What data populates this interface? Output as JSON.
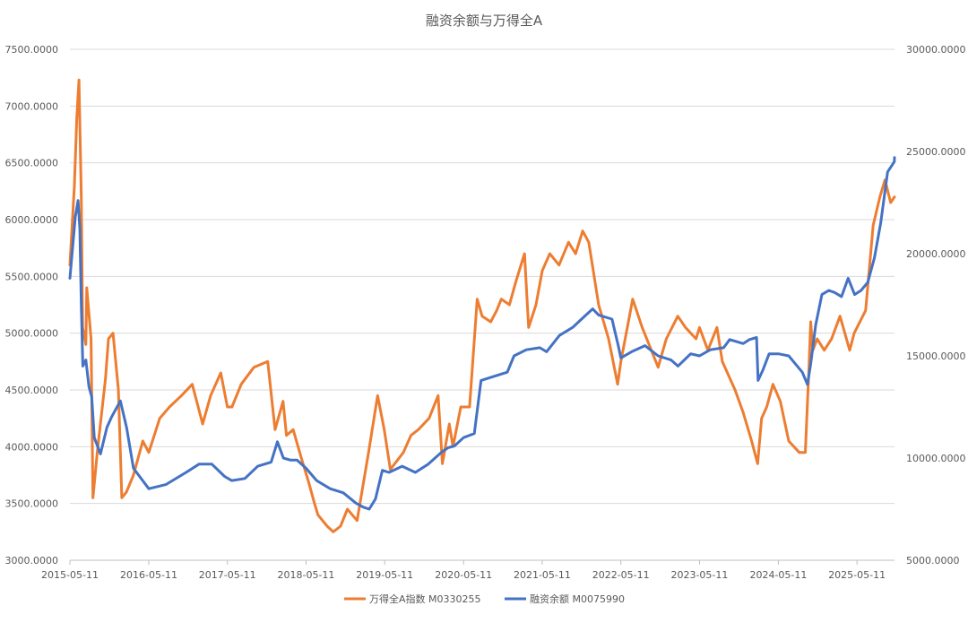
{
  "chart_data": {
    "type": "line",
    "title": "融资余额与万得全A",
    "xlabel": "",
    "ylabel": "",
    "y2label": "",
    "x_tick_labels": [
      "2015-05-11",
      "2016-05-11",
      "2017-05-11",
      "2018-05-11",
      "2019-05-11",
      "2020-05-11",
      "2021-05-11",
      "2022-05-11",
      "2023-05-11",
      "2024-05-11",
      "2025-05-11"
    ],
    "y_tick_labels": [
      "3000.0000",
      "3500.0000",
      "4000.0000",
      "4500.0000",
      "5000.0000",
      "5500.0000",
      "6000.0000",
      "6500.0000",
      "7000.0000",
      "7500.0000"
    ],
    "y2_tick_labels": [
      "5000.0000",
      "10000.0000",
      "15000.0000",
      "20000.0000",
      "25000.0000",
      "30000.0000"
    ],
    "ylim": [
      3000,
      7500
    ],
    "y2lim": [
      5000,
      30000
    ],
    "xlim": [
      "2015-05-11",
      "2025-11-01"
    ],
    "grid": true,
    "legend_position": "bottom",
    "series": [
      {
        "name": "万得全A指数 M0330255",
        "axis": "left",
        "color": "#ED7D31",
        "x": [
          "2015-05-11",
          "2015-06-01",
          "2015-06-12",
          "2015-06-22",
          "2015-07-03",
          "2015-07-09",
          "2015-07-24",
          "2015-07-28",
          "2015-08-17",
          "2015-08-26",
          "2015-09-15",
          "2015-10-23",
          "2015-11-06",
          "2015-11-27",
          "2015-12-22",
          "2016-01-07",
          "2016-01-28",
          "2016-03-01",
          "2016-04-13",
          "2016-05-11",
          "2016-07-01",
          "2016-08-15",
          "2016-10-10",
          "2016-11-29",
          "2017-01-16",
          "2017-02-22",
          "2017-04-10",
          "2017-05-11",
          "2017-06-01",
          "2017-07-14",
          "2017-09-11",
          "2017-11-14",
          "2017-12-18",
          "2018-01-24",
          "2018-02-09",
          "2018-03-12",
          "2018-04-19",
          "2018-05-21",
          "2018-06-19",
          "2018-07-05",
          "2018-08-17",
          "2018-09-14",
          "2018-10-18",
          "2018-11-19",
          "2019-01-03",
          "2019-02-25",
          "2019-04-08",
          "2019-05-09",
          "2019-06-06",
          "2019-08-06",
          "2019-09-10",
          "2019-10-14",
          "2019-12-03",
          "2020-01-14",
          "2020-02-03",
          "2020-03-06",
          "2020-03-23",
          "2020-04-28",
          "2020-06-08",
          "2020-07-13",
          "2020-08-05",
          "2020-09-14",
          "2020-10-12",
          "2020-11-02",
          "2020-12-10",
          "2021-01-08",
          "2021-02-18",
          "2021-03-09",
          "2021-04-12",
          "2021-05-11",
          "2021-06-15",
          "2021-07-28",
          "2021-09-10",
          "2021-10-13",
          "2021-11-15",
          "2021-12-13",
          "2022-01-28",
          "2022-03-15",
          "2022-04-26",
          "2022-05-11",
          "2022-07-05",
          "2022-08-18",
          "2022-10-31",
          "2022-12-08",
          "2023-01-30",
          "2023-03-07",
          "2023-04-25",
          "2023-05-11",
          "2023-06-19",
          "2023-07-31",
          "2023-08-25",
          "2023-10-23",
          "2023-11-30",
          "2024-01-08",
          "2024-02-05",
          "2024-02-23",
          "2024-03-18",
          "2024-04-16",
          "2024-05-20",
          "2024-06-28",
          "2024-08-16",
          "2024-09-13",
          "2024-09-30",
          "2024-10-08",
          "2024-10-18",
          "2024-11-07",
          "2024-12-10",
          "2025-01-13",
          "2025-02-21",
          "2025-04-07",
          "2025-04-28",
          "2025-05-11",
          "2025-06-20",
          "2025-07-25",
          "2025-08-25",
          "2025-09-18",
          "2025-10-14",
          "2025-11-01"
        ],
        "values": [
          5600,
          6300,
          6900,
          7230,
          6200,
          5050,
          4900,
          5400,
          4950,
          3550,
          3950,
          4600,
          4950,
          5000,
          4500,
          3550,
          3600,
          3750,
          4050,
          3950,
          4250,
          4350,
          4450,
          4550,
          4200,
          4450,
          4650,
          4350,
          4350,
          4550,
          4700,
          4750,
          4150,
          4400,
          4100,
          4150,
          3900,
          3700,
          3500,
          3400,
          3300,
          3250,
          3300,
          3450,
          3350,
          3950,
          4450,
          4150,
          3800,
          3950,
          4100,
          4150,
          4250,
          4450,
          3850,
          4200,
          4000,
          4350,
          4350,
          5300,
          5150,
          5100,
          5200,
          5300,
          5250,
          5450,
          5700,
          5050,
          5250,
          5550,
          5700,
          5600,
          5800,
          5700,
          5900,
          5800,
          5250,
          4950,
          4550,
          4750,
          5300,
          5050,
          4700,
          4950,
          5150,
          5050,
          4950,
          5050,
          4850,
          5050,
          4750,
          4500,
          4300,
          4050,
          3850,
          4250,
          4350,
          4550,
          4400,
          4050,
          3950,
          3950,
          4700,
          5100,
          4850,
          4950,
          4850,
          4950,
          5150,
          4850,
          5000,
          5050,
          5200,
          5950,
          6200,
          6350,
          6150,
          6200
        ]
      },
      {
        "name": "融资余额 M0075990",
        "axis": "right",
        "color": "#4472C4",
        "x": [
          "2015-05-11",
          "2015-05-25",
          "2015-06-05",
          "2015-06-18",
          "2015-06-26",
          "2015-07-03",
          "2015-07-10",
          "2015-07-24",
          "2015-08-07",
          "2015-08-20",
          "2015-09-01",
          "2015-09-30",
          "2015-10-30",
          "2015-11-20",
          "2015-12-31",
          "2016-01-29",
          "2016-03-01",
          "2016-05-11",
          "2016-07-29",
          "2016-10-31",
          "2016-12-30",
          "2017-02-28",
          "2017-04-28",
          "2017-05-31",
          "2017-07-31",
          "2017-09-29",
          "2017-11-30",
          "2017-12-29",
          "2018-01-26",
          "2018-02-28",
          "2018-03-30",
          "2018-05-11",
          "2018-06-29",
          "2018-08-31",
          "2018-10-31",
          "2018-12-28",
          "2019-01-31",
          "2019-02-28",
          "2019-03-29",
          "2019-04-30",
          "2019-05-31",
          "2019-07-31",
          "2019-09-30",
          "2019-11-29",
          "2020-01-31",
          "2020-02-28",
          "2020-03-31",
          "2020-05-11",
          "2020-06-30",
          "2020-07-31",
          "2020-09-30",
          "2020-11-30",
          "2020-12-31",
          "2021-02-26",
          "2021-04-30",
          "2021-05-31",
          "2021-07-30",
          "2021-09-30",
          "2021-11-30",
          "2021-12-31",
          "2022-01-28",
          "2022-03-31",
          "2022-04-29",
          "2022-05-11",
          "2022-06-30",
          "2022-08-31",
          "2022-10-31",
          "2022-12-30",
          "2023-01-31",
          "2023-03-31",
          "2023-05-11",
          "2023-06-30",
          "2023-08-31",
          "2023-09-28",
          "2023-11-30",
          "2023-12-29",
          "2024-01-31",
          "2024-02-07",
          "2024-02-29",
          "2024-03-29",
          "2024-05-11",
          "2024-06-28",
          "2024-08-30",
          "2024-09-23",
          "2024-10-08",
          "2024-10-31",
          "2024-11-29",
          "2024-12-31",
          "2025-01-27",
          "2025-02-28",
          "2025-03-31",
          "2025-04-30",
          "2025-05-30",
          "2025-06-30",
          "2025-07-31",
          "2025-08-29",
          "2025-09-30",
          "2025-10-31",
          "2025-11-01"
        ],
        "values": [
          18800,
          20500,
          21800,
          22600,
          21200,
          17500,
          14500,
          14800,
          13500,
          13000,
          11000,
          10200,
          11500,
          12000,
          12800,
          11500,
          9500,
          8500,
          8700,
          9300,
          9700,
          9700,
          9100,
          8900,
          9000,
          9600,
          9800,
          10800,
          10000,
          9900,
          9900,
          9500,
          8900,
          8500,
          8300,
          7800,
          7600,
          7500,
          8000,
          9400,
          9300,
          9600,
          9300,
          9700,
          10300,
          10500,
          10600,
          11000,
          11200,
          13800,
          14000,
          14200,
          15000,
          15300,
          15400,
          15200,
          16000,
          16400,
          17000,
          17300,
          17000,
          16800,
          15500,
          14900,
          15200,
          15500,
          15000,
          14800,
          14500,
          15100,
          15000,
          15300,
          15400,
          15800,
          15600,
          15800,
          15900,
          13800,
          14300,
          15100,
          15100,
          15000,
          14200,
          13600,
          14600,
          16500,
          18000,
          18200,
          18100,
          17900,
          18800,
          18000,
          18200,
          18600,
          19800,
          21500,
          24000,
          24500,
          24700
        ]
      }
    ]
  }
}
